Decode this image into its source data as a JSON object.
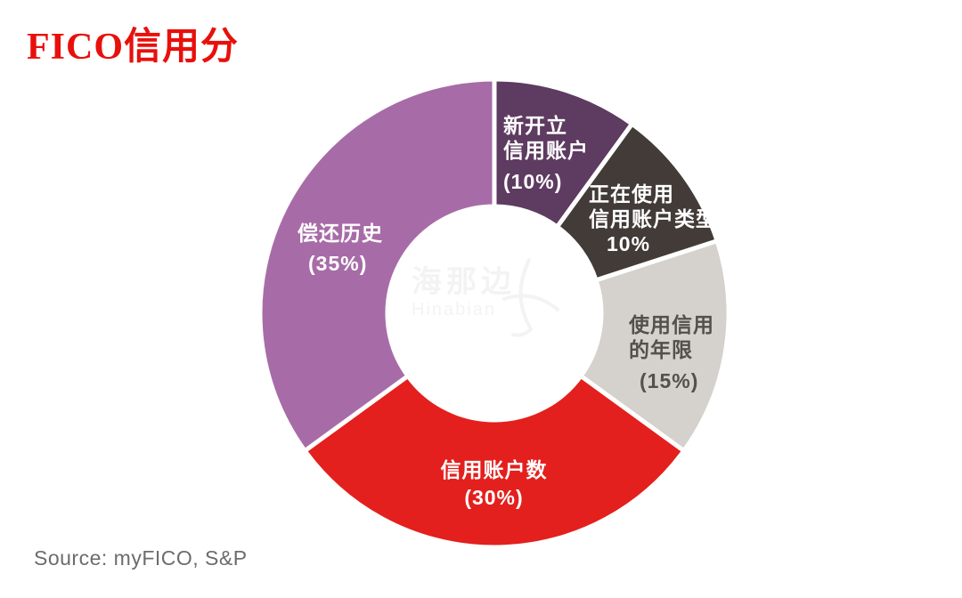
{
  "page": {
    "background": "#ffffff"
  },
  "header": {
    "title": "FICO信用分",
    "title_color": "#e8100c"
  },
  "watermark": {
    "cn": "海那边",
    "en": "Hinabian"
  },
  "footer": {
    "source": "Source: myFICO, S&P"
  },
  "chart_data": {
    "type": "pie",
    "subtype": "donut",
    "title": "FICO信用分",
    "unit": "percent",
    "direction": "clockwise",
    "start_angle_deg": 0,
    "inner_radius_ratio": 0.46,
    "gap_color": "#ffffff",
    "legend": "labels-inside-segments",
    "categories": [
      "新开立信用账户",
      "正在使用信用账户类型",
      "使用信用的年限",
      "信用账户数",
      "偿还历史"
    ],
    "values": [
      10,
      10,
      15,
      30,
      35
    ],
    "segments": [
      {
        "name": "new-credit-accounts",
        "label_lines": [
          "新开立",
          "信用账户"
        ],
        "pct_label": "(10%)",
        "value": 10,
        "color": "#5e3b60",
        "text_color": "#ffffff"
      },
      {
        "name": "credit-mix-in-use",
        "label_lines": [
          "正在使用",
          "信用账户类型"
        ],
        "pct_label": "10%",
        "value": 10,
        "color": "#423b37",
        "text_color": "#ffffff"
      },
      {
        "name": "length-of-credit-history",
        "label_lines": [
          "使用信用",
          "的年限"
        ],
        "pct_label": "(15%)",
        "value": 15,
        "color": "#d5d1cc",
        "text_color": "#55504b"
      },
      {
        "name": "number-of-credit-accounts",
        "label_lines": [
          "信用账户数"
        ],
        "pct_label": "(30%)",
        "value": 30,
        "color": "#e3201d",
        "text_color": "#ffffff"
      },
      {
        "name": "repayment-history",
        "label_lines": [
          "偿还历史"
        ],
        "pct_label": "(35%)",
        "value": 35,
        "color": "#a76ca7",
        "text_color": "#ffffff"
      }
    ]
  }
}
